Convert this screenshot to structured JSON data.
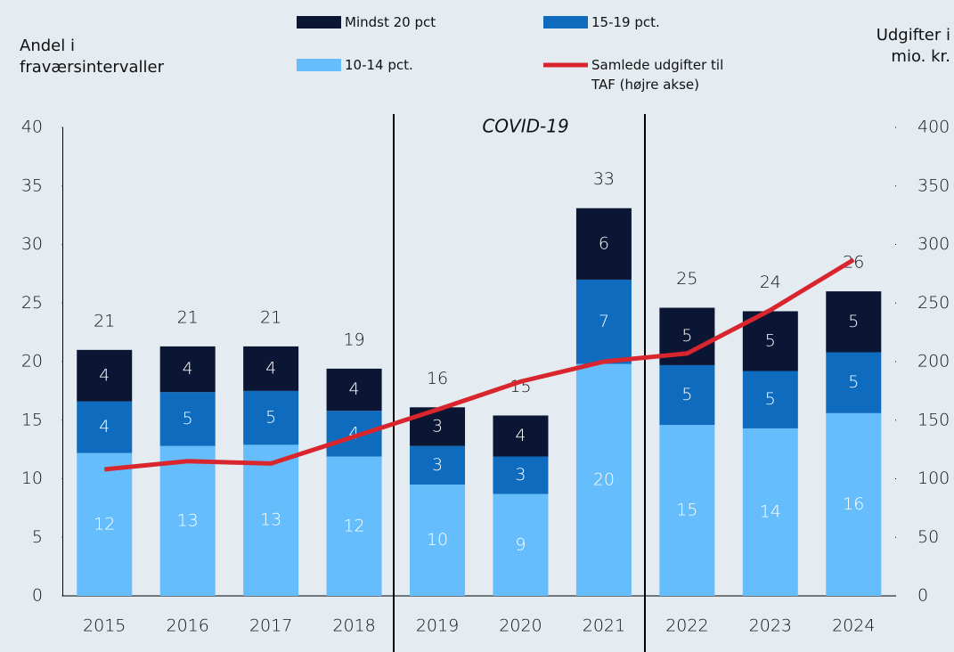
{
  "chart_data": {
    "type": "bar",
    "stacked": true,
    "y_label": "Andel i fraværsintervaller",
    "y2_label": "Udgifter i mio. kr.",
    "annotations": [
      "COVID-19"
    ],
    "categories": [
      "2015",
      "2016",
      "2017",
      "2018",
      "2019",
      "2020",
      "2021",
      "2022",
      "2023",
      "2024"
    ],
    "series": [
      {
        "name": "10-14 pct.",
        "color": "#66bdfc",
        "values": [
          12.2,
          12.8,
          12.9,
          11.9,
          9.5,
          8.7,
          19.8,
          14.6,
          14.3,
          15.6
        ],
        "value_labels": [
          "12",
          "13",
          "13",
          "12",
          "10",
          "9",
          "20",
          "15",
          "14",
          "16"
        ]
      },
      {
        "name": "15-19 pct.",
        "color": "#0f6bbd",
        "values": [
          4.4,
          4.6,
          4.6,
          3.9,
          3.3,
          3.2,
          7.2,
          5.1,
          4.9,
          5.2
        ],
        "value_labels": [
          "4",
          "5",
          "5",
          "4",
          "3",
          "3",
          "7",
          "5",
          "5",
          "5"
        ]
      },
      {
        "name": "Mindst 20 pct",
        "color": "#0a1633",
        "values": [
          4.4,
          3.9,
          3.8,
          3.6,
          3.3,
          3.5,
          6.1,
          4.9,
          5.1,
          5.2
        ],
        "value_labels": [
          "4",
          "4",
          "4",
          "4",
          "3",
          "4",
          "6",
          "5",
          "5",
          "5"
        ]
      },
      {
        "name": "Samlede udgifter til TAF (højre akse)",
        "type": "line",
        "axis": "y2",
        "color": "#d9262e",
        "values": [
          108,
          115,
          113,
          136,
          159,
          183,
          200,
          207,
          244,
          287
        ]
      }
    ],
    "total_labels": [
      "21",
      "21",
      "21",
      "19",
      "16",
      "15",
      "33",
      "25",
      "24",
      "26"
    ],
    "ylim": [
      0,
      40
    ],
    "yticks": [
      0,
      5,
      10,
      15,
      20,
      25,
      30,
      35,
      40
    ],
    "y2lim": [
      0,
      400
    ],
    "y2ticks": [
      0,
      50,
      100,
      150,
      200,
      250,
      300,
      350,
      400
    ]
  }
}
